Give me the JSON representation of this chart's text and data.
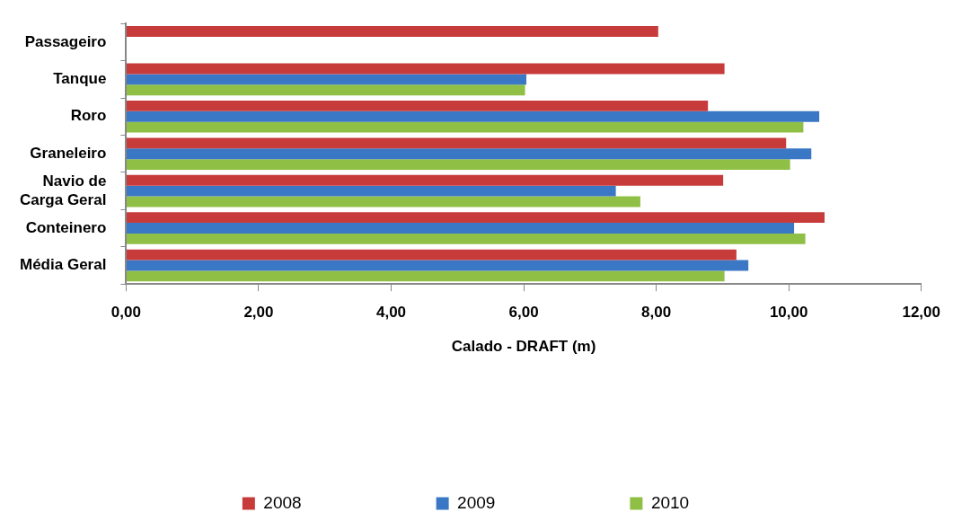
{
  "chart_data": {
    "type": "bar",
    "orientation": "horizontal",
    "xlabel": "Calado - DRAFT (m)",
    "categories": [
      "Passageiro",
      "Tanque",
      "Roro",
      "Graneleiro",
      "Navio de Carga Geral",
      "Conteinero",
      "Média Geral"
    ],
    "series": [
      {
        "name": "2008",
        "color": "#c73b3b",
        "values": [
          8.03,
          9.03,
          8.78,
          9.96,
          9.01,
          10.54,
          9.21
        ]
      },
      {
        "name": "2009",
        "color": "#3a77c4",
        "values": [
          null,
          6.04,
          10.46,
          10.34,
          7.39,
          10.08,
          9.39
        ]
      },
      {
        "name": "2010",
        "color": "#8fbf45",
        "values": [
          null,
          6.02,
          10.22,
          10.02,
          7.76,
          10.25,
          9.03
        ]
      }
    ],
    "xlim": [
      0,
      12
    ],
    "xticks": [
      {
        "value": 0,
        "label": "0,00"
      },
      {
        "value": 2,
        "label": "2,00"
      },
      {
        "value": 4,
        "label": "4,00"
      },
      {
        "value": 6,
        "label": "6,00"
      },
      {
        "value": 8,
        "label": "8,00"
      },
      {
        "value": 10,
        "label": "10,00"
      },
      {
        "value": 12,
        "label": "12,00"
      }
    ],
    "grid": false,
    "legend": "bottom"
  }
}
